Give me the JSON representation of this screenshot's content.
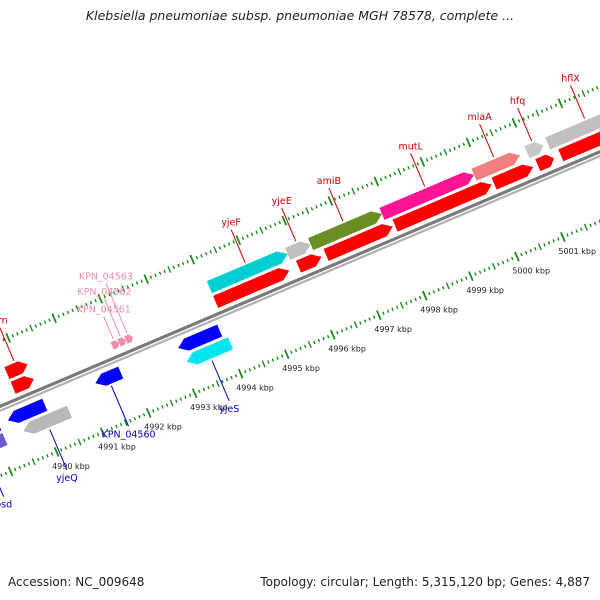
{
  "title": "Klebsiella pneumoniae subsp. pneumoniae MGH 78578, complete ...",
  "footer": {
    "accession": "Accession: NC_009648",
    "summary": "Topology: circular; Length: 5,315,120 bp; Genes: 4,887"
  },
  "colors": {
    "backbone": "#8c8c8c",
    "tick": "#1e8a1e",
    "forward_label": "#cc0000",
    "reverse_label": "#0000cc",
    "faint_label": "#f08caa"
  },
  "scale_ticks": [
    {
      "label": "4990 kbp",
      "pos": 4990
    },
    {
      "label": "4991 kbp",
      "pos": 4991
    },
    {
      "label": "4992 kbp",
      "pos": 4992
    },
    {
      "label": "4993 kbp",
      "pos": 4993
    },
    {
      "label": "4994 kbp",
      "pos": 4994
    },
    {
      "label": "4995 kbp",
      "pos": 4995
    },
    {
      "label": "4996 kbp",
      "pos": 4996
    },
    {
      "label": "4997 kbp",
      "pos": 4997
    },
    {
      "label": "4998 kbp",
      "pos": 4998
    },
    {
      "label": "4999 kbp",
      "pos": 4999
    },
    {
      "label": "5000 kbp",
      "pos": 5000
    },
    {
      "label": "5001 kbp",
      "pos": 5001
    }
  ],
  "genes": [
    {
      "name": "",
      "strand": "+",
      "row": 2,
      "start": 4988.2,
      "end": 4989.15,
      "color": "#0000cc"
    },
    {
      "name": "psd",
      "strand": "+",
      "row": 3,
      "start": 4988.2,
      "end": 4989.15,
      "color": "#6a5acd",
      "labeled": true
    },
    {
      "name": "",
      "strand": "+",
      "row": 2,
      "start": 4989.35,
      "end": 4990.15,
      "color": "#0000ff"
    },
    {
      "name": "yjeQ",
      "strand": "+",
      "row": 3,
      "start": 4989.55,
      "end": 4990.55,
      "color": "#b8b8b8",
      "labeled": true
    },
    {
      "name": "KPN_04560",
      "strand": "+",
      "row": 2,
      "start": 4991.25,
      "end": 4991.8,
      "color": "#0000ff",
      "labeled": true
    },
    {
      "name": "",
      "strand": "+",
      "row": 2,
      "start": 4993.05,
      "end": 4993.95,
      "color": "#0000ff"
    },
    {
      "name": "yjeS",
      "strand": "+",
      "row": 3,
      "start": 4993.1,
      "end": 4994.05,
      "color": "#00e5ee",
      "labeled": true
    },
    {
      "name": "orn",
      "strand": "-",
      "row": 1,
      "start": 4989.7,
      "end": 4990.15,
      "color": "#ff0000",
      "labeled": true
    },
    {
      "name": "",
      "strand": "-",
      "row": 2,
      "start": 4989.7,
      "end": 4990.15,
      "color": "#ff0000"
    },
    {
      "name": "KPN_04561",
      "strand": "-",
      "row": 2,
      "start": 4991.85,
      "end": 4992.0,
      "color": "#f08caa",
      "labeled": true,
      "faint": true
    },
    {
      "name": "KPN_04562",
      "strand": "-",
      "row": 2,
      "start": 4992.0,
      "end": 4992.15,
      "color": "#f08caa",
      "labeled": true,
      "faint": true
    },
    {
      "name": "KPN_04563",
      "strand": "-",
      "row": 2,
      "start": 4992.15,
      "end": 4992.3,
      "color": "#f08caa",
      "labeled": true,
      "faint": true
    },
    {
      "name": "yjeF",
      "strand": "-",
      "row": 1,
      "start": 4994.1,
      "end": 4995.8,
      "color": "#00ced1",
      "labeled": true
    },
    {
      "name": "",
      "strand": "-",
      "row": 2,
      "start": 4994.1,
      "end": 4995.7,
      "color": "#ff0000"
    },
    {
      "name": "yjeE",
      "strand": "-",
      "row": 1,
      "start": 4995.8,
      "end": 4996.3,
      "color": "#c0c0c0",
      "labeled": true
    },
    {
      "name": "",
      "strand": "-",
      "row": 2,
      "start": 4995.9,
      "end": 4996.4,
      "color": "#ff0000"
    },
    {
      "name": "amiB",
      "strand": "-",
      "row": 1,
      "start": 4996.3,
      "end": 4997.85,
      "color": "#6b8e23",
      "labeled": true
    },
    {
      "name": "",
      "strand": "-",
      "row": 2,
      "start": 4996.5,
      "end": 4997.95,
      "color": "#ff0000"
    },
    {
      "name": "mutL",
      "strand": "-",
      "row": 1,
      "start": 4997.85,
      "end": 4999.85,
      "color": "#ff1493",
      "labeled": true
    },
    {
      "name": "",
      "strand": "-",
      "row": 2,
      "start": 4998.0,
      "end": 5000.1,
      "color": "#ff0000"
    },
    {
      "name": "miaA",
      "strand": "-",
      "row": 1,
      "start": 4999.85,
      "end": 5000.85,
      "color": "#f08080",
      "labeled": true
    },
    {
      "name": "",
      "strand": "-",
      "row": 2,
      "start": 5000.15,
      "end": 5001.0,
      "color": "#ff0000"
    },
    {
      "name": "hfq",
      "strand": "-",
      "row": 1,
      "start": 5001.0,
      "end": 5001.35,
      "color": "#c8c8c8",
      "labeled": true
    },
    {
      "name": "",
      "strand": "-",
      "row": 2,
      "start": 5001.1,
      "end": 5001.45,
      "color": "#ff0000"
    },
    {
      "name": "hflX",
      "strand": "-",
      "row": 1,
      "start": 5001.45,
      "end": 5003.2,
      "color": "#c0c0c0",
      "labeled": true
    },
    {
      "name": "",
      "strand": "-",
      "row": 2,
      "start": 5001.6,
      "end": 5003.4,
      "color": "#ff0000"
    }
  ]
}
